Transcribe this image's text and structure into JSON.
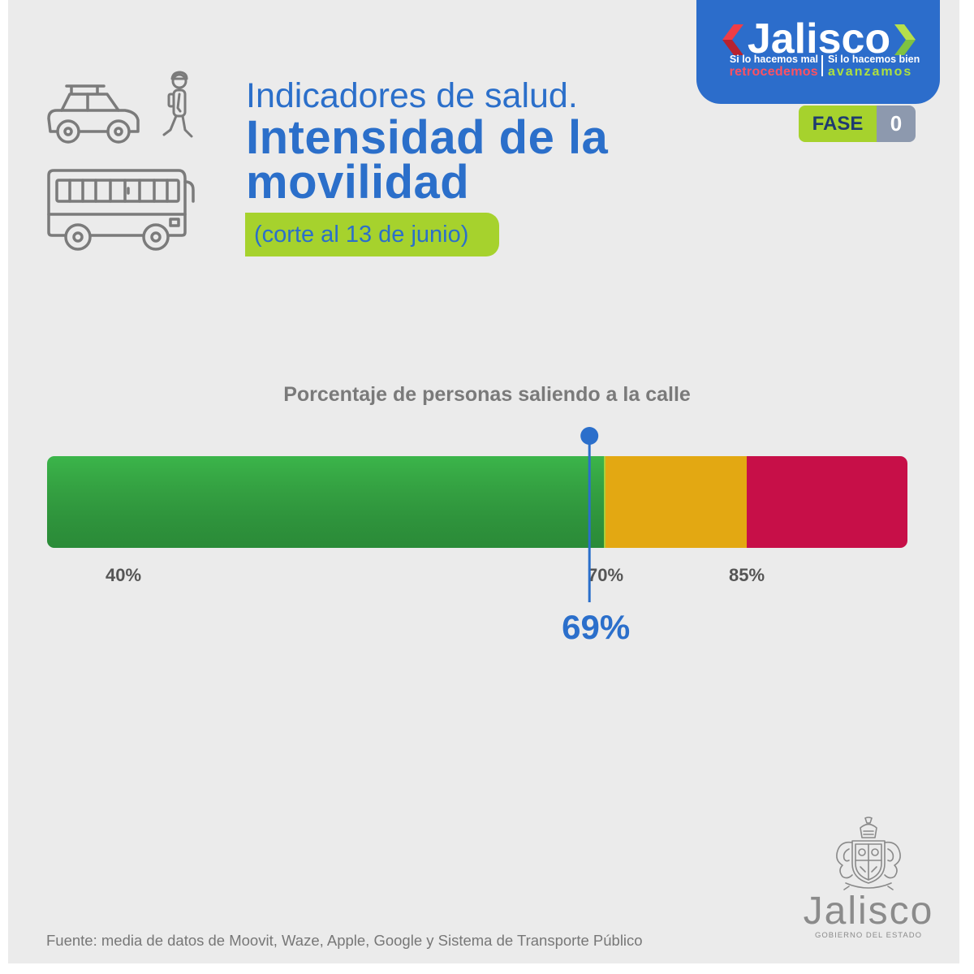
{
  "badge": {
    "brand": "Jalisco",
    "left_top": "Si lo hacemos mal",
    "left_bottom": "retrocedemos",
    "right_top": "Si lo hacemos bien",
    "right_bottom": "avanzamos"
  },
  "phase": {
    "label": "FASE",
    "number": "0"
  },
  "header": {
    "subtitle": "Indicadores de salud.",
    "title_line1": "Intensidad de la",
    "title_line2": "movilidad",
    "cutoff": "(corte al 13 de junio)"
  },
  "icons": [
    "car-icon",
    "pedestrian-icon",
    "bus-icon",
    "coat-of-arms-icon",
    "chevron-left-icon",
    "chevron-right-icon"
  ],
  "chart_data": {
    "type": "bar",
    "title": "Porcentaje de personas saliendo a la calle",
    "segments": [
      {
        "from": null,
        "to": 70,
        "color": "#3bb54a"
      },
      {
        "from": 70,
        "to": 85,
        "color": "#e3a812"
      },
      {
        "from": 85,
        "to": null,
        "color": "#c70f48"
      }
    ],
    "ticks": [
      {
        "value": 40,
        "label": "40%"
      },
      {
        "value": 70,
        "label": "70%"
      },
      {
        "value": 85,
        "label": "85%"
      }
    ],
    "marker": {
      "value": 69,
      "label": "69%",
      "color": "#2b6fcb"
    }
  },
  "source": "Fuente: media de datos de Moovit, Waze, Apple, Google y Sistema de Transporte Público",
  "footer": {
    "brand": "Jalisco",
    "subtitle": "GOBIERNO DEL ESTADO"
  },
  "colors": {
    "brand_blue": "#2c6dcb",
    "lime": "#a6d22d",
    "background": "#ebebeb",
    "slogan_red": "#ff5162",
    "slogan_green": "#aee03f",
    "phase_number_bg": "#8d99ae",
    "icon_gray": "#7b7b7b"
  }
}
